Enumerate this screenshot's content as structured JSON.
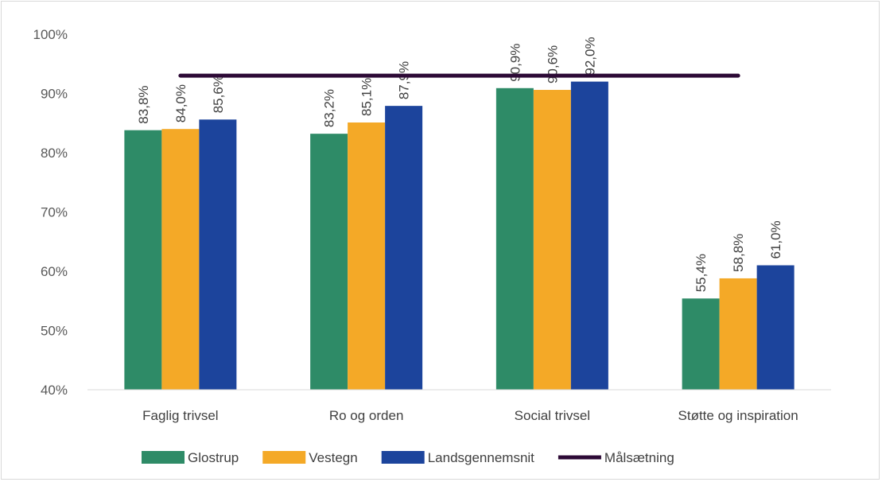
{
  "chart_data": {
    "type": "bar",
    "categories": [
      "Faglig trivsel",
      "Ro og orden",
      "Social trivsel",
      "Støtte og inspiration"
    ],
    "series": [
      {
        "name": "Glostrup",
        "color": "#2e8b67",
        "values": [
          83.8,
          83.2,
          90.9,
          55.4
        ],
        "labels": [
          "83,8%",
          "83,2%",
          "90,9%",
          "55,4%"
        ]
      },
      {
        "name": "Vestegn",
        "color": "#f4a927",
        "values": [
          84.0,
          85.1,
          90.6,
          58.8
        ],
        "labels": [
          "84,0%",
          "85,1%",
          "90,6%",
          "58,8%"
        ]
      },
      {
        "name": "Landsgennemsnit",
        "color": "#1c449c",
        "values": [
          85.6,
          87.9,
          92.0,
          61.0
        ],
        "labels": [
          "85,6%",
          "87,9%",
          "92,0%",
          "61,0%"
        ]
      }
    ],
    "target_line": {
      "name": "Målsætning",
      "value": 93.0,
      "color": "#2d0a36"
    },
    "ylim": [
      40,
      100
    ],
    "yticks": [
      40,
      50,
      60,
      70,
      80,
      90,
      100
    ],
    "ytick_labels": [
      "40%",
      "50%",
      "60%",
      "70%",
      "80%",
      "90%",
      "100%"
    ],
    "grid": false,
    "legend_position": "bottom"
  }
}
